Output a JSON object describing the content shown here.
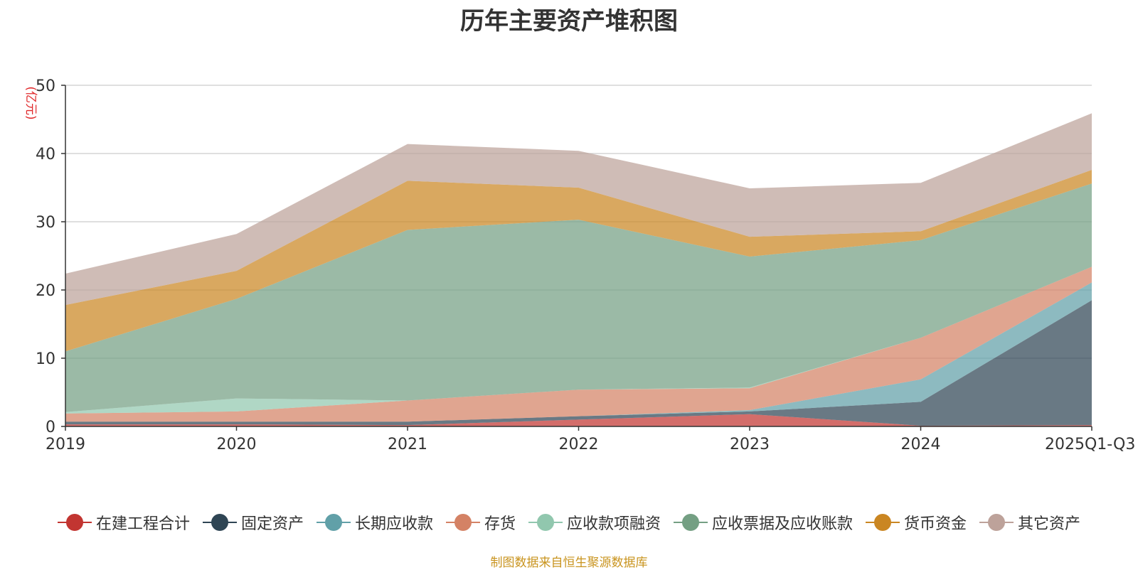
{
  "chart_data": {
    "type": "area",
    "stacked": true,
    "title": "历年主要资产堆积图",
    "ylabel": "(亿元)",
    "xlabel": "",
    "ylim": [
      0,
      50
    ],
    "yticks": [
      0,
      10,
      20,
      30,
      40,
      50
    ],
    "grid": true,
    "legend_position": "bottom",
    "categories": [
      "2019",
      "2020",
      "2021",
      "2022",
      "2023",
      "2024",
      "2025Q1-Q3"
    ],
    "series": [
      {
        "name": "在建工程合计",
        "color": "#c23531",
        "values": [
          0.3,
          0.3,
          0.2,
          1.0,
          1.8,
          0.1,
          0.2
        ]
      },
      {
        "name": "固定资产",
        "color": "#2f4554",
        "values": [
          0.4,
          0.4,
          0.5,
          0.5,
          0.4,
          3.5,
          18.3
        ]
      },
      {
        "name": "长期应收款",
        "color": "#61a0a8",
        "values": [
          0.0,
          0.0,
          0.0,
          0.0,
          0.2,
          3.3,
          2.6
        ]
      },
      {
        "name": "存货",
        "color": "#d48265",
        "values": [
          1.2,
          1.5,
          3.1,
          3.9,
          3.2,
          6.1,
          2.3
        ]
      },
      {
        "name": "应收款项融资",
        "color": "#91c7ae",
        "values": [
          0.2,
          1.9,
          0.0,
          0.0,
          0.1,
          0.0,
          0.0
        ]
      },
      {
        "name": "应收票据及应收账款",
        "color": "#749f83",
        "values": [
          8.9,
          14.6,
          25.0,
          24.9,
          19.2,
          14.3,
          12.2
        ]
      },
      {
        "name": "货币资金",
        "color": "#ca8622",
        "values": [
          6.8,
          4.1,
          7.2,
          4.7,
          2.9,
          1.3,
          2.0
        ]
      },
      {
        "name": "其它资产",
        "color": "#bda29a",
        "values": [
          4.6,
          5.4,
          5.4,
          5.4,
          7.1,
          7.1,
          8.3
        ]
      }
    ]
  },
  "source_text": "制图数据来自恒生聚源数据库"
}
